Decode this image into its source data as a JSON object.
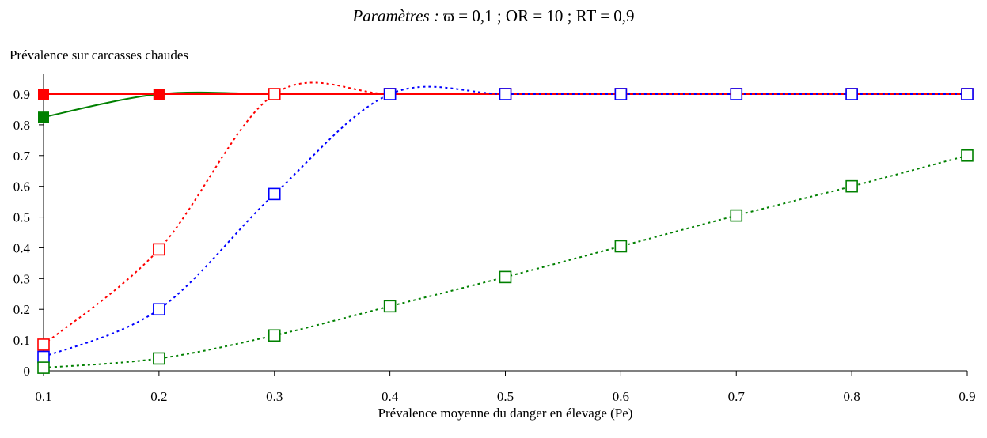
{
  "chart_data": {
    "type": "line",
    "title_prefix": "Paramètres :",
    "title_params": "ϖ = 0,1 ; OR = 10 ; RT = 0,9",
    "ylabel": "Prévalence sur carcasses chaudes",
    "xlabel": "Prévalence moyenne du danger en élevage (Pe)",
    "xlim": [
      0.1,
      0.9
    ],
    "ylim": [
      0,
      0.9
    ],
    "xticks": [
      "0.1",
      "0.2",
      "0.3",
      "0.4",
      "0.5",
      "0.6",
      "0.7",
      "0.8",
      "0.9"
    ],
    "yticks": [
      "0",
      "0.1",
      "0.2",
      "0.3",
      "0.4",
      "0.5",
      "0.6",
      "0.7",
      "0.8",
      "0.9"
    ],
    "grid": false,
    "legend": "none",
    "x": [
      0.1,
      0.2,
      0.3,
      0.4,
      0.5,
      0.6,
      0.7,
      0.8,
      0.9
    ],
    "series": [
      {
        "color": "#008000",
        "marker": "filled-square",
        "line": "solid",
        "values": [
          0.825,
          0.9,
          0.9,
          0.9,
          0.9,
          0.9,
          0.9,
          0.9,
          0.9
        ]
      },
      {
        "color": "#ff0000",
        "marker": "filled-square",
        "line": "solid",
        "values": [
          0.9,
          0.9,
          0.9,
          0.9,
          0.9,
          0.9,
          0.9,
          0.9,
          0.9
        ]
      },
      {
        "color": "#ff0000",
        "marker": "open-square",
        "line": "dotted",
        "values": [
          0.085,
          0.395,
          0.9,
          0.9,
          0.9,
          0.9,
          0.9,
          0.9,
          0.9
        ]
      },
      {
        "color": "#0000ff",
        "marker": "open-square",
        "line": "dotted",
        "values": [
          0.045,
          0.2,
          0.575,
          0.9,
          0.9,
          0.9,
          0.9,
          0.9,
          0.9
        ]
      },
      {
        "color": "#008000",
        "marker": "open-square",
        "line": "dotted",
        "values": [
          0.01,
          0.04,
          0.115,
          0.21,
          0.305,
          0.405,
          0.505,
          0.6,
          0.7
        ]
      }
    ]
  }
}
